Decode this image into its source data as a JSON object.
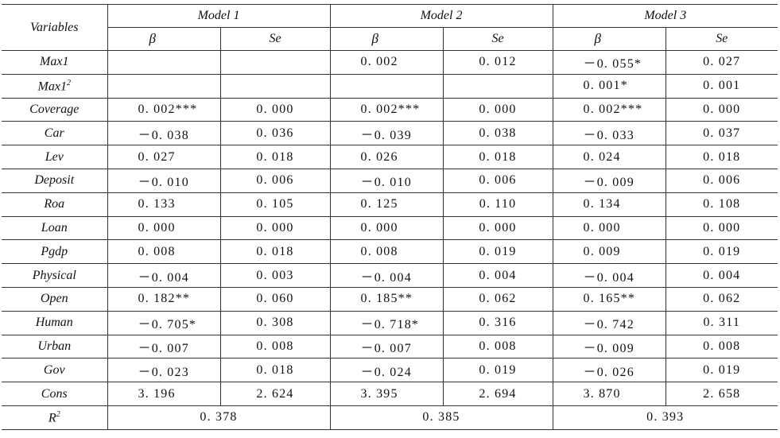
{
  "table": {
    "header": {
      "variables": "Variables",
      "models": [
        "Model 1",
        "Model 2",
        "Model 3"
      ],
      "beta": "β",
      "se": "Se"
    },
    "rows": [
      {
        "var": "Max1",
        "sup": "",
        "cells": [
          "",
          "",
          "0. 002",
          "0. 012",
          "－0. 055*",
          "0. 027"
        ]
      },
      {
        "var": "Max1",
        "sup": "2",
        "cells": [
          "",
          "",
          "",
          "",
          "0. 001*",
          "0. 001"
        ]
      },
      {
        "var": "Coverage",
        "sup": "",
        "cells": [
          "0. 002***",
          "0. 000",
          "0. 002***",
          "0. 000",
          "0. 002***",
          "0. 000"
        ]
      },
      {
        "var": "Car",
        "sup": "",
        "cells": [
          "－0. 038",
          "0. 036",
          "－0. 039",
          "0. 038",
          "－0. 033",
          "0. 037"
        ]
      },
      {
        "var": "Lev",
        "sup": "",
        "cells": [
          "0. 027",
          "0. 018",
          "0. 026",
          "0. 018",
          "0. 024",
          "0. 018"
        ]
      },
      {
        "var": "Deposit",
        "sup": "",
        "cells": [
          "－0. 010",
          "0. 006",
          "－0. 010",
          "0. 006",
          "－0. 009",
          "0. 006"
        ]
      },
      {
        "var": "Roa",
        "sup": "",
        "cells": [
          "0. 133",
          "0. 105",
          "0. 125",
          "0. 110",
          "0. 134",
          "0. 108"
        ]
      },
      {
        "var": "Loan",
        "sup": "",
        "cells": [
          "0. 000",
          "0. 000",
          "0. 000",
          "0. 000",
          "0. 000",
          "0. 000"
        ]
      },
      {
        "var": "Pgdp",
        "sup": "",
        "cells": [
          "0. 008",
          "0. 018",
          "0. 008",
          "0. 019",
          "0. 009",
          "0. 019"
        ]
      },
      {
        "var": "Physical",
        "sup": "",
        "cells": [
          "－0. 004",
          "0. 003",
          "－0. 004",
          "0. 004",
          "－0. 004",
          "0. 004"
        ]
      },
      {
        "var": "Open",
        "sup": "",
        "cells": [
          "0. 182**",
          "0. 060",
          "0. 185**",
          "0. 062",
          "0. 165**",
          "0. 062"
        ]
      },
      {
        "var": "Human",
        "sup": "",
        "cells": [
          "－0. 705*",
          "0. 308",
          "－0. 718*",
          "0. 316",
          "－0. 742",
          "0. 311"
        ]
      },
      {
        "var": "Urban",
        "sup": "",
        "cells": [
          "－0. 007",
          "0. 008",
          "－0. 007",
          "0. 008",
          "－0. 009",
          "0. 008"
        ]
      },
      {
        "var": "Gov",
        "sup": "",
        "cells": [
          "－0. 023",
          "0. 018",
          "－0. 024",
          "0. 019",
          "－0. 026",
          "0. 019"
        ]
      },
      {
        "var": "Cons",
        "sup": "",
        "cells": [
          "3. 196",
          "2. 624",
          "3. 395",
          "2. 694",
          "3. 870",
          "2. 658"
        ]
      }
    ],
    "r2": {
      "label": "R",
      "sup": "2",
      "values": [
        "0. 378",
        "0. 385",
        "0. 393"
      ]
    }
  }
}
